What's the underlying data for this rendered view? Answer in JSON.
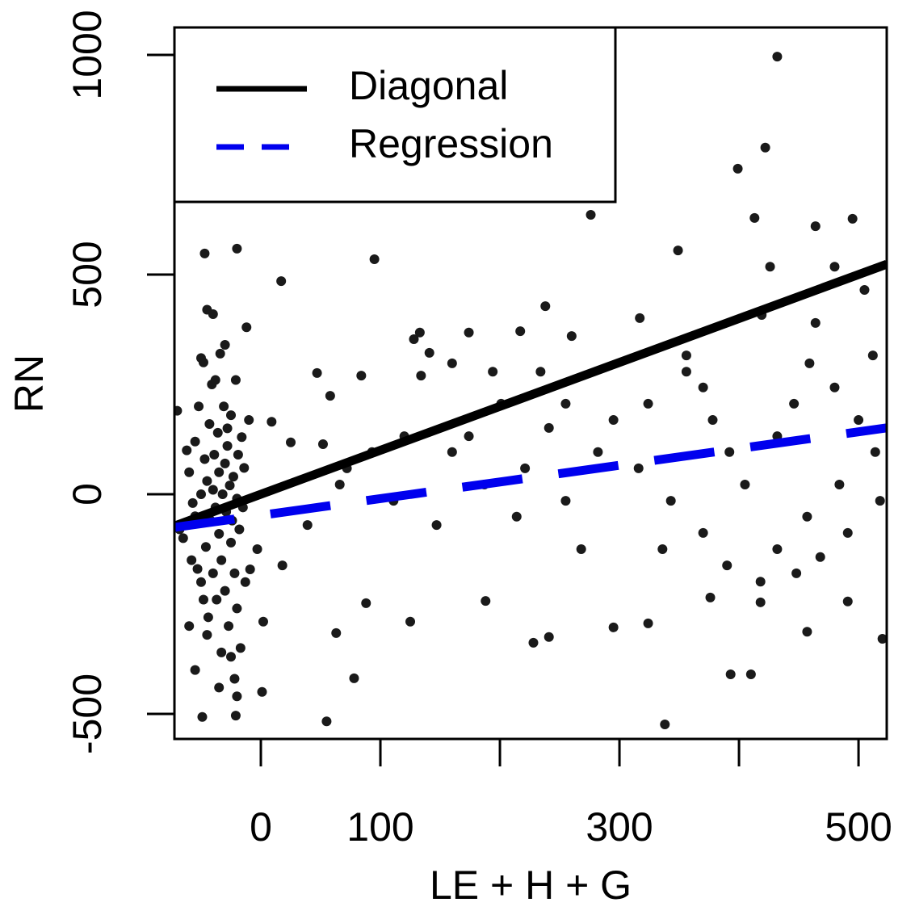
{
  "chart_data": {
    "type": "scatter",
    "xlabel": "LE + H + G",
    "ylabel": "RN",
    "xlim": [
      -72.3,
      523.6
    ],
    "ylim": [
      -557,
      1062.5
    ],
    "xticks": [
      0,
      100,
      {
        "value": 200,
        "label": null
      },
      300,
      {
        "value": 400,
        "label": null
      },
      500
    ],
    "yticks": [
      -500,
      0,
      500,
      1000
    ],
    "legend": "topleft",
    "series": [
      {
        "color": "#1a1a1a",
        "x": [
          432,
          422,
          399,
          276,
          495,
          413,
          464,
          349,
          95,
          17,
          -20,
          -47,
          238,
          317,
          338,
          55,
          -49,
          -21,
          78,
          393,
          410,
          1,
          520,
          228,
          241,
          63,
          457,
          125,
          295,
          324,
          491,
          418,
          88,
          188,
          376,
          133,
          174,
          217,
          260,
          128,
          141,
          356,
          134,
          84,
          47,
          58,
          25,
          -10,
          9,
          -9,
          2,
          -3,
          160,
          187,
          214,
          255,
          268,
          147,
          111,
          66,
          39,
          18,
          295,
          324,
          356,
          378,
          392,
          405,
          432,
          446,
          459,
          480,
          500,
          514,
          484,
          457,
          432,
          390,
          370,
          343,
          316,
          336,
          505,
          480,
          426,
          419,
          512,
          201,
          234,
          255,
          282,
          174,
          120,
          93,
          72,
          52,
          221,
          241,
          194,
          160,
          370,
          464,
          518,
          491,
          448,
          418,
          468,
          -65,
          -60,
          -58,
          -55,
          -55,
          -52,
          -50,
          -50,
          -48,
          -47,
          -46,
          -45,
          -44,
          -43,
          -42,
          -41,
          -40,
          -40,
          -39,
          -38,
          -37,
          -36,
          -35,
          -35,
          -34,
          -33,
          -32,
          -31,
          -30,
          -30,
          -29,
          -28,
          -27,
          -26,
          -25,
          -25,
          -24,
          -23,
          -22,
          -21,
          -20,
          -20,
          -19,
          -18,
          -17,
          -16,
          -15,
          -14,
          -13,
          -12,
          -60,
          -55,
          -50,
          -45,
          -35,
          -25,
          -20,
          -62,
          -68,
          -70,
          -45,
          -30,
          -40,
          -57,
          -48,
          -33,
          -22,
          -28,
          -38,
          -53
        ],
        "values": [
          996,
          789,
          741,
          636,
          627,
          629,
          610,
          555,
          535,
          485,
          559,
          548,
          428,
          401,
          -524,
          -517,
          -507,
          -504,
          -419,
          -410,
          -410,
          -450,
          -329,
          -338,
          -325,
          -316,
          -313,
          -290,
          -303,
          -294,
          -244,
          -246,
          -248,
          -243,
          -235,
          368,
          368,
          371,
          360,
          353,
          322,
          316,
          270,
          270,
          276,
          224,
          118,
          169,
          165,
          -171,
          -290,
          -125,
          96,
          22,
          -51,
          -15,
          -125,
          -70,
          -15,
          22,
          -70,
          -162,
          169,
          206,
          279,
          169,
          96,
          22,
          132,
          206,
          298,
          243,
          169,
          96,
          22,
          -51,
          -125,
          -162,
          -88,
          -15,
          59,
          -125,
          465,
          518,
          518,
          408,
          316,
          206,
          279,
          206,
          96,
          132,
          132,
          96,
          59,
          114,
          59,
          151,
          279,
          298,
          243,
          390,
          -15,
          -88,
          -180,
          -199,
          -143,
          -100,
          50,
          -150,
          120,
          -50,
          200,
          0,
          -200,
          300,
          80,
          -120,
          30,
          -280,
          160,
          -60,
          250,
          10,
          -180,
          90,
          -30,
          -240,
          140,
          50,
          -90,
          320,
          -150,
          0,
          200,
          -220,
          70,
          -40,
          110,
          -300,
          20,
          -110,
          180,
          -60,
          40,
          -180,
          260,
          -10,
          -260,
          90,
          -80,
          -350,
          130,
          -30,
          60,
          -200,
          380,
          -300,
          -400,
          310,
          420,
          -440,
          -370,
          -460,
          100,
          -80,
          190,
          -320,
          340,
          410,
          -20,
          -240,
          -360,
          -420,
          150,
          260,
          -170
        ]
      }
    ],
    "lines": [
      {
        "name": "Diagonal",
        "color": "#000000",
        "slope": 1,
        "intercept": 0,
        "dashed": false
      },
      {
        "name": "Regression",
        "color": "#0000ee",
        "slope": 0.38,
        "intercept": -48,
        "dashed": true
      }
    ]
  }
}
